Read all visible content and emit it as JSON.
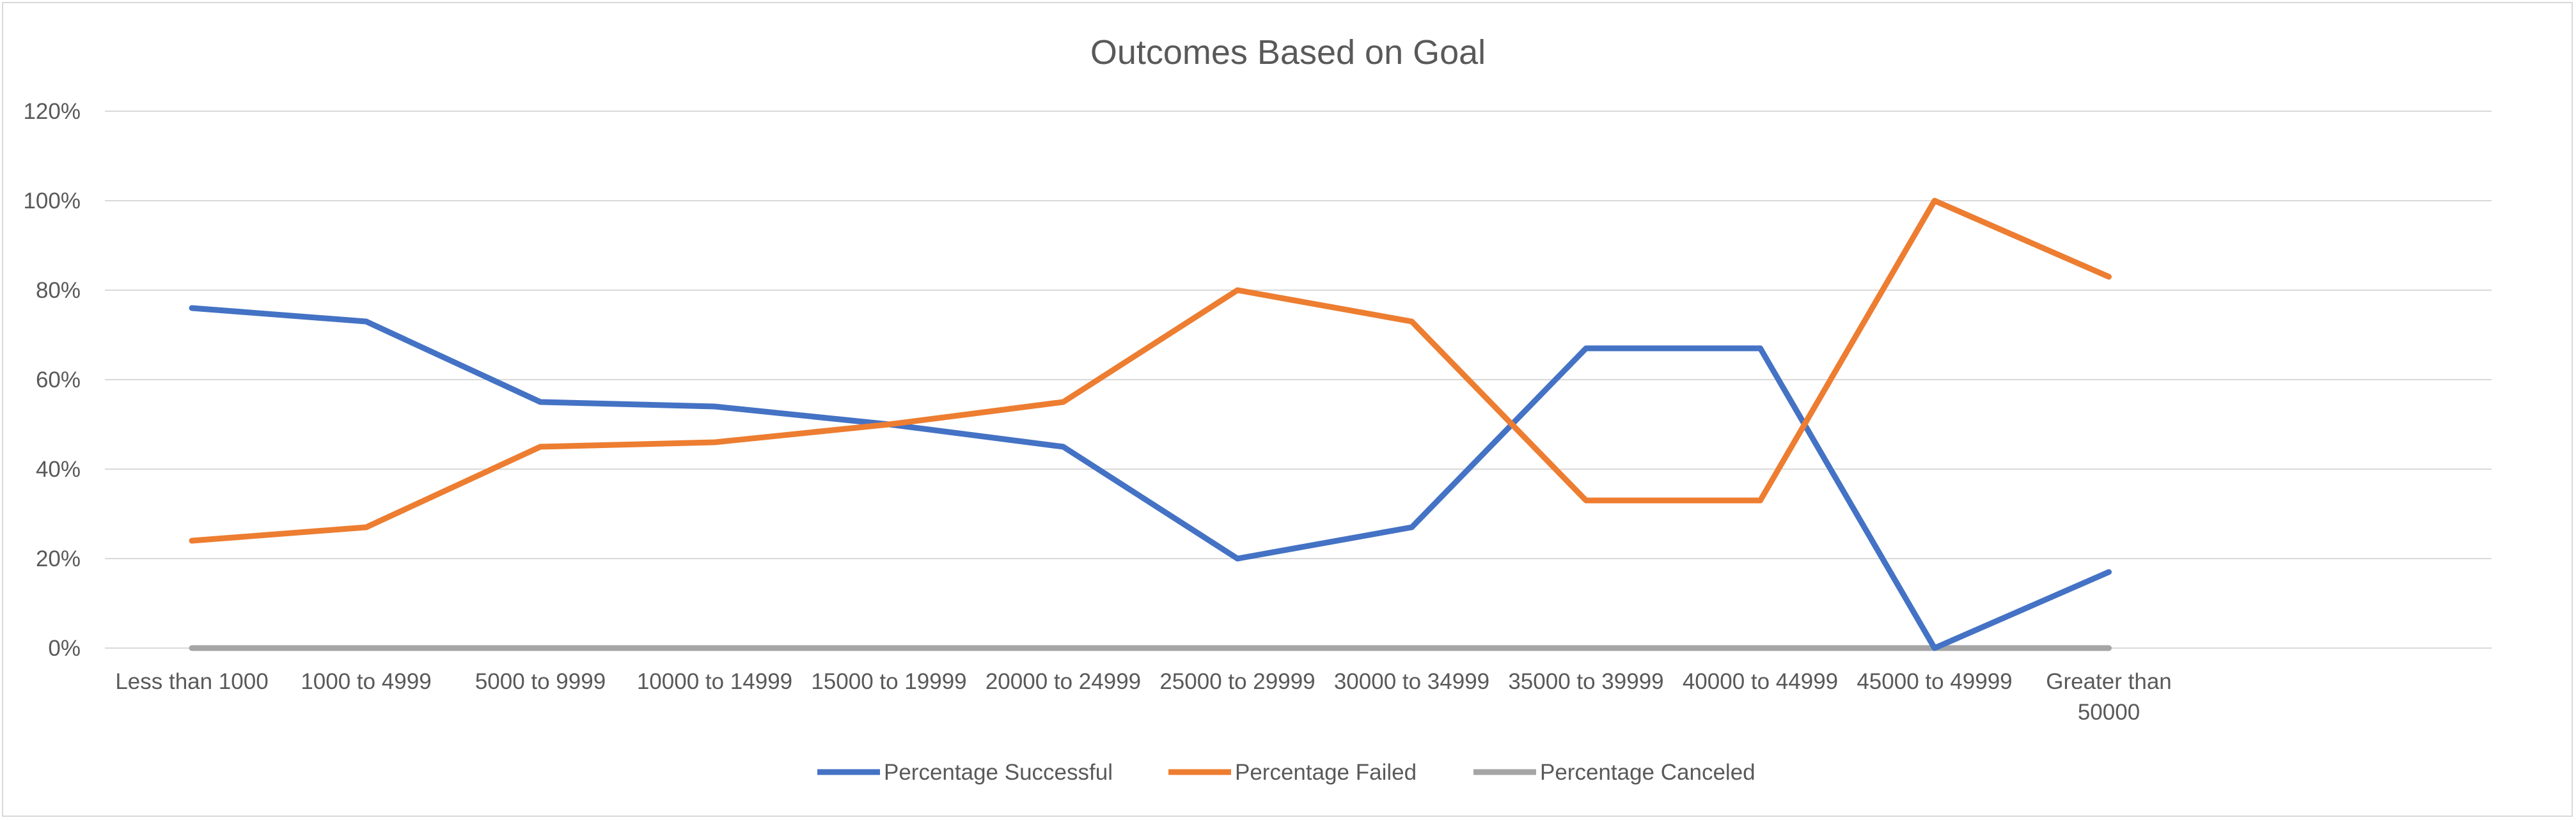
{
  "chart_data": {
    "type": "line",
    "title": "Outcomes Based on Goal",
    "xlabel": "",
    "ylabel": "",
    "categories": [
      [
        "Less than 1000"
      ],
      [
        "1000 to 4999"
      ],
      [
        "5000 to 9999"
      ],
      [
        "10000 to 14999"
      ],
      [
        "15000 to 19999"
      ],
      [
        "20000 to 24999"
      ],
      [
        "25000 to 29999"
      ],
      [
        "30000 to 34999"
      ],
      [
        "35000 to 39999"
      ],
      [
        "40000 to 44999"
      ],
      [
        "45000 to 49999"
      ],
      [
        "Greater than",
        "50000"
      ]
    ],
    "ylim": [
      0,
      120
    ],
    "yticks": [
      0,
      20,
      40,
      60,
      80,
      100,
      120
    ],
    "ytick_labels": [
      "0%",
      "20%",
      "40%",
      "60%",
      "80%",
      "100%",
      "120%"
    ],
    "grid": true,
    "legend_position": "bottom",
    "series": [
      {
        "name": "Percentage Successful",
        "color": "#4472C4",
        "values": [
          76,
          73,
          55,
          54,
          50,
          45,
          20,
          27,
          67,
          67,
          0,
          17
        ]
      },
      {
        "name": "Percentage Failed",
        "color": "#ED7D31",
        "values": [
          24,
          27,
          45,
          46,
          50,
          55,
          80,
          73,
          33,
          33,
          100,
          83
        ]
      },
      {
        "name": "Percentage Canceled",
        "color": "#A5A5A5",
        "values": [
          0,
          0,
          0,
          0,
          0,
          0,
          0,
          0,
          0,
          0,
          0,
          0
        ]
      }
    ]
  }
}
